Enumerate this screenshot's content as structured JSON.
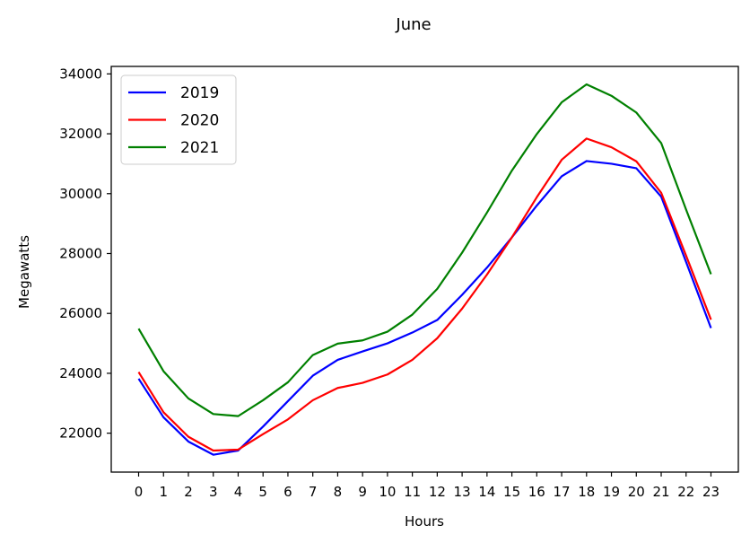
{
  "chart_data": {
    "type": "line",
    "title": "June",
    "xlabel": "Hours",
    "ylabel": "Megawatts",
    "x": [
      0,
      1,
      2,
      3,
      4,
      5,
      6,
      7,
      8,
      9,
      10,
      11,
      12,
      13,
      14,
      15,
      16,
      17,
      18,
      19,
      20,
      21,
      22,
      23
    ],
    "x_tick_labels": [
      "0",
      "1",
      "2",
      "3",
      "4",
      "5",
      "6",
      "7",
      "8",
      "9",
      "10",
      "11",
      "12",
      "13",
      "14",
      "15",
      "16",
      "17",
      "18",
      "19",
      "20",
      "21",
      "22",
      "23"
    ],
    "y_ticks": [
      22000,
      24000,
      26000,
      28000,
      30000,
      32000,
      34000
    ],
    "y_tick_labels": [
      "22000",
      "24000",
      "26000",
      "28000",
      "30000",
      "32000",
      "34000"
    ],
    "xlim": [
      -1.1,
      24.1
    ],
    "ylim": [
      20700,
      34250
    ],
    "grid": false,
    "legend_position": "upper-left",
    "series": [
      {
        "name": "2019",
        "color": "#0000ff",
        "values": [
          23820,
          22530,
          21720,
          21280,
          21420,
          22220,
          23070,
          23920,
          24450,
          24730,
          25000,
          25360,
          25780,
          26620,
          27530,
          28540,
          29600,
          30580,
          31090,
          31000,
          30850,
          29900,
          27720,
          25510
        ]
      },
      {
        "name": "2020",
        "color": "#ff0000",
        "values": [
          24040,
          22700,
          21880,
          21420,
          21450,
          21970,
          22460,
          23100,
          23510,
          23680,
          23960,
          24450,
          25170,
          26160,
          27300,
          28540,
          29880,
          31130,
          31840,
          31550,
          31080,
          30030,
          27930,
          25790
        ]
      },
      {
        "name": "2021",
        "color": "#008000",
        "values": [
          25490,
          24070,
          23160,
          22640,
          22570,
          23100,
          23700,
          24610,
          24990,
          25100,
          25390,
          25960,
          26820,
          28030,
          29370,
          30770,
          31990,
          33050,
          33650,
          33270,
          32710,
          31690,
          29470,
          27310
        ]
      }
    ]
  }
}
